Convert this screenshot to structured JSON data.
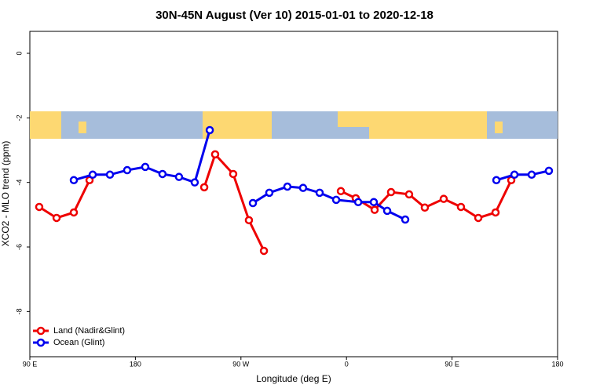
{
  "chart_data": {
    "type": "line",
    "title": "30N-45N August (Ver 10)   2015-01-01 to 2020-12-18",
    "x_label": "Longitude (deg E)",
    "y_label": "XCO2 - MLO trend (ppm)",
    "xlim": [
      90,
      540
    ],
    "ylim": [
      -9.4,
      0.68
    ],
    "xticks": [
      {
        "value": 90,
        "label": "90 E"
      },
      {
        "value": 180,
        "label": "180"
      },
      {
        "value": 270,
        "label": "90 W"
      },
      {
        "value": 360,
        "label": "0"
      },
      {
        "value": 450,
        "label": "90 E"
      },
      {
        "value": 540,
        "label": "180"
      }
    ],
    "yticks": [
      0,
      -2,
      -4,
      -6,
      -8
    ],
    "legend": "bottom-left",
    "series": [
      {
        "name": "Land (Nadir&Glint)",
        "color": "#ee0000",
        "x": [
          98.0,
          112.8,
          127.5,
          140.9,
          null,
          238.7,
          248.0,
          263.4,
          276.8,
          289.6,
          null,
          355.2,
          367.9,
          384.0,
          398.0,
          413.4,
          426.8,
          442.9,
          457.6,
          472.4,
          487.1,
          500.5
        ],
        "values": [
          -4.76,
          -5.1,
          -4.93,
          -3.93,
          null,
          -4.15,
          -3.13,
          -3.74,
          -5.17,
          -6.12,
          null,
          -4.27,
          -4.49,
          -4.85,
          -4.3,
          -4.37,
          -4.78,
          -4.51,
          -4.76,
          -5.1,
          -4.93,
          -3.93
        ]
      },
      {
        "name": "Ocean (Glint)",
        "color": "#0000ee",
        "x": [
          127.5,
          143.6,
          158.3,
          173.0,
          188.4,
          203.1,
          217.2,
          230.6,
          243.4,
          null,
          280.2,
          294.2,
          309.6,
          323.0,
          337.1,
          351.2,
          370.0,
          383.3,
          394.7,
          410.1,
          null,
          487.8,
          503.2,
          517.9,
          532.6
        ],
        "values": [
          -3.93,
          -3.76,
          -3.76,
          -3.62,
          -3.52,
          -3.74,
          -3.83,
          -4.0,
          -2.38,
          null,
          -4.64,
          -4.32,
          -4.13,
          -4.17,
          -4.32,
          -4.54,
          -4.61,
          -4.61,
          -4.88,
          -5.15,
          null,
          -3.93,
          -3.76,
          -3.76,
          -3.64
        ]
      }
    ]
  }
}
